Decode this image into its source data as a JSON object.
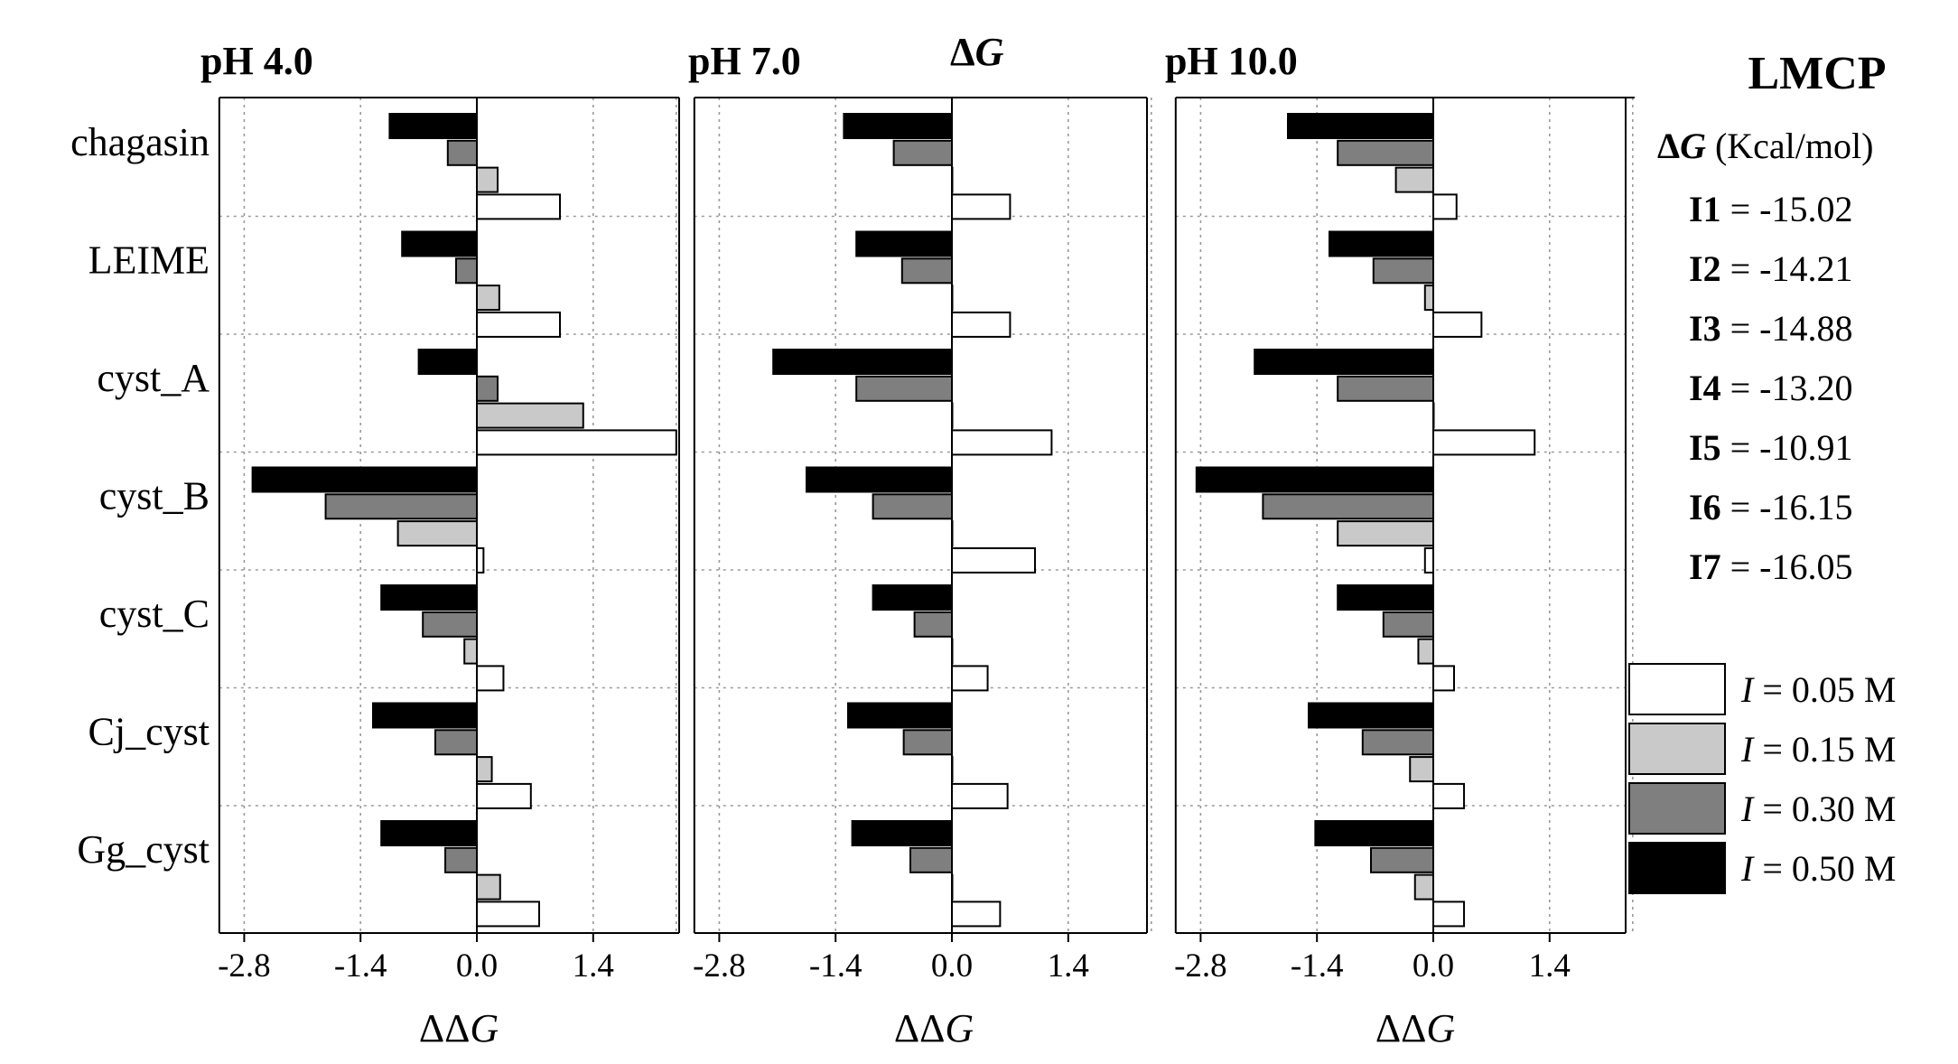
{
  "chart_data": {
    "type": "bar",
    "orientation": "horizontal",
    "categories": [
      "chagasin",
      "LEIME",
      "cyst_A",
      "cyst_B",
      "cyst_C",
      "Cj_cyst",
      "Gg_cyst"
    ],
    "series_names": [
      "I = 0.50 M",
      "I = 0.30 M",
      "I = 0.15 M",
      "I = 0.05 M"
    ],
    "series_colors": [
      "#000000",
      "#7f7f7f",
      "#c9c9c9",
      "#ffffff"
    ],
    "xlim": [
      -3.1,
      2.4
    ],
    "xticks": [
      -2.8,
      -1.4,
      0.0,
      1.4
    ],
    "xtick_labels": [
      "-2.8",
      "-1.4",
      "0.0",
      "1.4"
    ],
    "xlabel_delta": "ΔΔ",
    "xlabel_var": "G",
    "panels": [
      {
        "title": "pH 4.0",
        "values": [
          [
            -1.05,
            -0.35,
            0.25,
            1.0
          ],
          [
            -0.9,
            -0.25,
            0.27,
            1.0
          ],
          [
            -0.7,
            0.25,
            1.28,
            2.4
          ],
          [
            -2.7,
            -1.82,
            -0.95,
            0.08
          ],
          [
            -1.15,
            -0.65,
            -0.15,
            0.32
          ],
          [
            -1.25,
            -0.5,
            0.18,
            0.65
          ],
          [
            -1.15,
            -0.38,
            0.28,
            0.75
          ]
        ]
      },
      {
        "title": "pH 7.0",
        "values": [
          [
            -1.3,
            -0.7,
            0.0,
            0.7
          ],
          [
            -1.15,
            -0.6,
            0.0,
            0.7
          ],
          [
            -2.15,
            -1.15,
            0.0,
            1.2
          ],
          [
            -1.75,
            -0.95,
            0.0,
            1.0
          ],
          [
            -0.95,
            -0.45,
            0.0,
            0.43
          ],
          [
            -1.25,
            -0.58,
            0.0,
            0.67
          ],
          [
            -1.2,
            -0.5,
            0.0,
            0.58
          ]
        ]
      },
      {
        "title": "pH 10.0",
        "values": [
          [
            -1.75,
            -1.15,
            -0.45,
            0.28
          ],
          [
            -1.25,
            -0.72,
            -0.1,
            0.58
          ],
          [
            -2.15,
            -1.15,
            0.0,
            1.22
          ],
          [
            -2.85,
            -2.05,
            -1.15,
            -0.1
          ],
          [
            -1.15,
            -0.6,
            -0.18,
            0.25
          ],
          [
            -1.5,
            -0.85,
            -0.28,
            0.37
          ],
          [
            -1.42,
            -0.75,
            -0.22,
            0.37
          ]
        ]
      }
    ],
    "header_delta_g": "Δ",
    "header_delta_g_var": "G"
  },
  "info": {
    "title": "LMCP",
    "unit_delta": "Δ",
    "unit_var": "G",
    "unit_text": " (Kcal/mol)",
    "entries": [
      {
        "label": "I1",
        "value": "= -15.02"
      },
      {
        "label": "I2",
        "value": "= -14.21"
      },
      {
        "label": "I3",
        "value": "= -14.88"
      },
      {
        "label": "I4",
        "value": "= -13.20"
      },
      {
        "label": "I5",
        "value": "= -10.91"
      },
      {
        "label": "I6",
        "value": "= -16.15"
      },
      {
        "label": "I7",
        "value": "= -16.05"
      }
    ]
  },
  "legend": [
    {
      "var": "I",
      "text": " = 0.05 M",
      "color": "#ffffff"
    },
    {
      "var": "I",
      "text": " = 0.15 M",
      "color": "#c9c9c9"
    },
    {
      "var": "I",
      "text": " = 0.30 M",
      "color": "#7f7f7f"
    },
    {
      "var": "I",
      "text": " = 0.50 M",
      "color": "#000000"
    }
  ]
}
